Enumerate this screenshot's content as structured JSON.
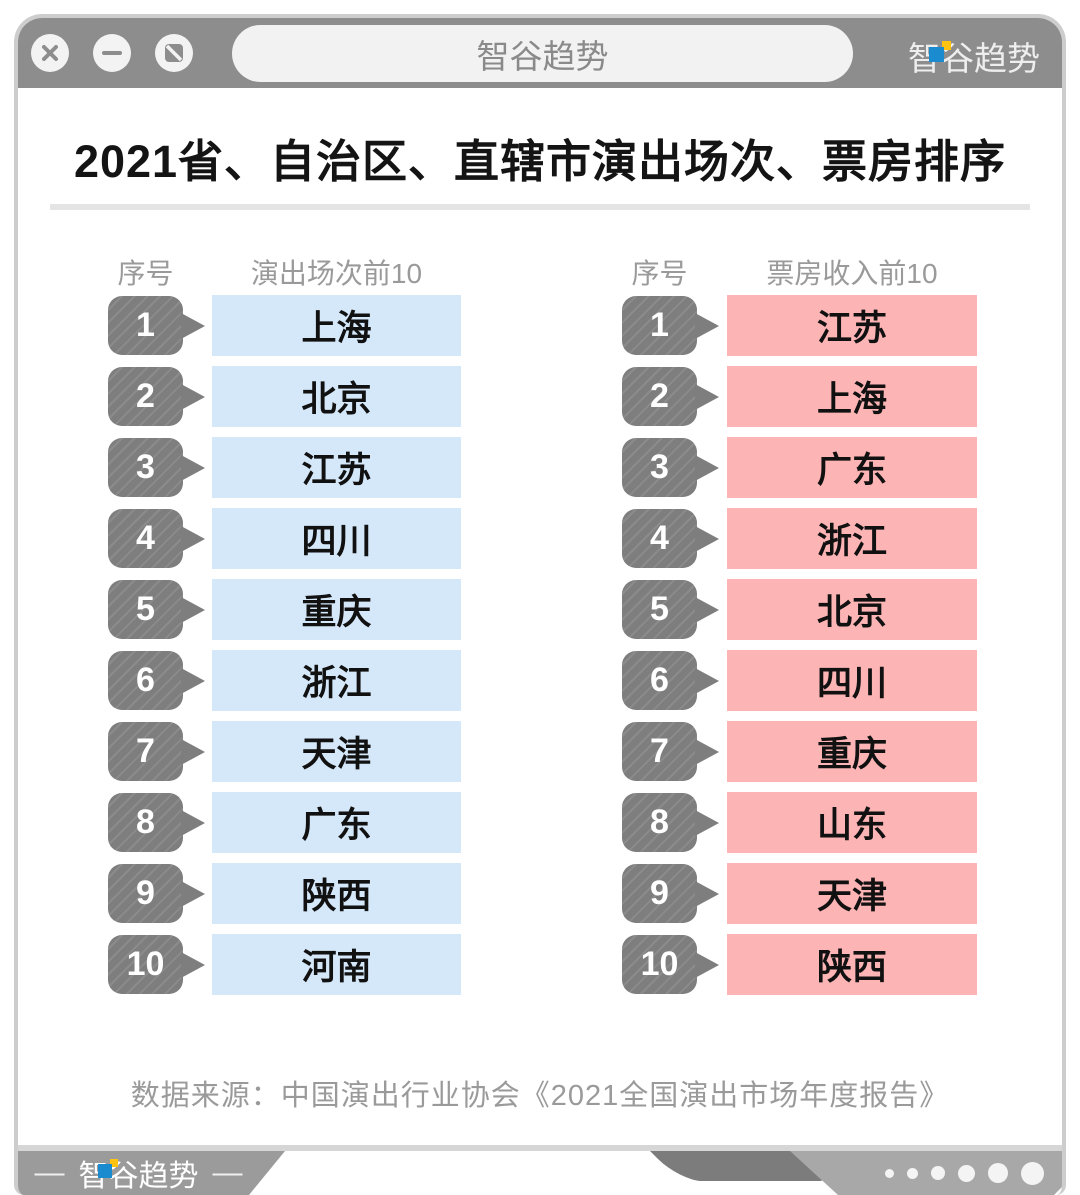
{
  "browser": {
    "controls": [
      {
        "name": "close"
      },
      {
        "name": "minimize"
      },
      {
        "name": "block"
      }
    ],
    "address_bar_text": "智谷趋势",
    "brand_text": "智谷趋势"
  },
  "chart_data": {
    "type": "table",
    "title": "2021省、自治区、直辖市演出场次、票房排序",
    "tables": [
      {
        "index_header": "序号",
        "value_header": "演出场次前10",
        "accent_color": "#d5e8fa",
        "ranks": [
          "1",
          "2",
          "3",
          "4",
          "5",
          "6",
          "7",
          "8",
          "9",
          "10"
        ],
        "values": [
          "上海",
          "北京",
          "江苏",
          "四川",
          "重庆",
          "浙江",
          "天津",
          "广东",
          "陕西",
          "河南"
        ]
      },
      {
        "index_header": "序号",
        "value_header": "票房收入前10",
        "accent_color": "#fcb4b5",
        "ranks": [
          "1",
          "2",
          "3",
          "4",
          "5",
          "6",
          "7",
          "8",
          "9",
          "10"
        ],
        "values": [
          "江苏",
          "上海",
          "广东",
          "浙江",
          "北京",
          "四川",
          "重庆",
          "山东",
          "天津",
          "陕西"
        ]
      }
    ],
    "source": "数据来源：中国演出行业协会《2021全国演出市场年度报告》",
    "legend_position": "none",
    "grid": false
  },
  "footer": {
    "dash_left": "—",
    "brand_text": "智谷趋势",
    "dash_right": "—",
    "dots_count": 6
  },
  "colors": {
    "frame_gray": "#8d8d8d",
    "badge_gray": "#7e7e7e",
    "sessions_blue": "#d5e8fa",
    "boxoffice_pink": "#fcb4b5",
    "muted_text": "#9a9a9a",
    "logo_blue": "#1b8bd0",
    "logo_yellow": "#ffc20e"
  }
}
